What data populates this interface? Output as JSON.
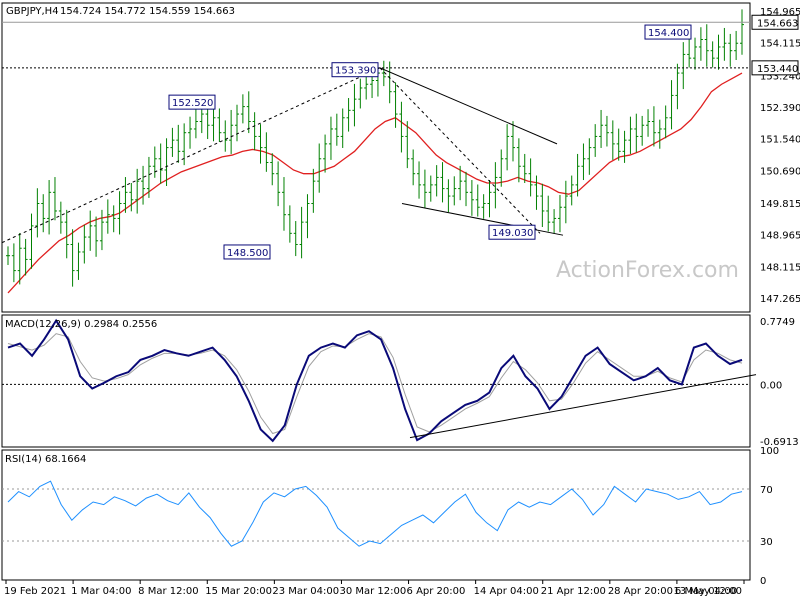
{
  "window": {
    "title": "GBPJPY,H4",
    "ohlc": "154.724 154.772 154.559 154.663"
  },
  "watermark": "ActionForex.com",
  "colors": {
    "bar": "#008000",
    "ma": "#e02020",
    "trendline": "#000000",
    "macd_main": "#0a0a78",
    "macd_signal": "#a0a0a0",
    "rsi": "#1e90ff",
    "label_box": "#0a0a78",
    "price_box": "#ffffff"
  },
  "chart_data": [
    {
      "type": "ohlc",
      "title": "GBPJPY,H4",
      "price_axis": {
        "ticks": [
          "154.965",
          "154.115",
          "153.240",
          "152.390",
          "151.540",
          "150.690",
          "149.815",
          "148.965",
          "148.115",
          "147.265"
        ],
        "ylim": [
          147.265,
          154.965
        ]
      },
      "current_price": "154.663",
      "level_line": "153.440",
      "annotations": [
        {
          "text": "152.520",
          "value": 152.52
        },
        {
          "text": "148.500",
          "value": 148.5
        },
        {
          "text": "153.390",
          "value": 153.39
        },
        {
          "text": "149.030",
          "value": 149.03
        },
        {
          "text": "154.400",
          "value": 154.4
        }
      ],
      "series": [
        {
          "values": [
            148.4,
            148.0,
            148.6,
            148.3,
            149.2,
            149.8,
            149.4,
            150.1,
            149.6,
            149.3,
            148.7,
            148.0,
            148.5,
            148.9,
            149.2,
            148.8,
            149.3,
            149.5,
            149.4,
            149.8,
            150.1,
            149.9,
            150.4,
            150.2,
            150.8,
            151.0,
            150.7,
            151.3,
            151.5,
            151.2,
            151.7,
            151.8,
            152.0,
            152.2,
            151.9,
            152.1,
            151.7,
            151.5,
            151.9,
            152.2,
            152.4,
            152.0,
            151.6,
            151.3,
            150.9,
            150.6,
            150.1,
            149.5,
            149.0,
            148.7,
            149.3,
            149.8,
            150.4,
            151.0,
            151.4,
            151.8,
            151.6,
            152.1,
            152.3,
            152.6,
            152.9,
            153.0,
            153.1,
            153.3,
            153.2,
            152.8,
            152.2,
            151.6,
            151.0,
            150.6,
            150.3,
            150.1,
            150.3,
            150.5,
            150.2,
            150.0,
            150.2,
            150.4,
            150.1,
            149.9,
            149.7,
            149.8,
            150.1,
            150.5,
            151.0,
            151.6,
            151.3,
            150.8,
            150.6,
            150.3,
            150.0,
            149.6,
            149.3,
            149.4,
            149.7,
            150.0,
            150.3,
            150.8,
            151.0,
            151.3,
            151.6,
            151.9,
            151.7,
            151.4,
            151.2,
            151.5,
            151.8,
            151.6,
            151.9,
            152.0,
            151.7,
            151.8,
            152.1,
            152.7,
            153.3,
            153.8,
            153.7,
            154.0,
            154.2,
            153.9,
            153.7,
            154.0,
            154.1,
            153.9,
            154.1,
            154.6
          ]
        },
        {
          "name": "MA",
          "values": [
            147.4,
            147.7,
            148.0,
            148.3,
            148.55,
            148.8,
            148.95,
            149.15,
            149.3,
            149.4,
            149.45,
            149.55,
            149.75,
            149.95,
            150.15,
            150.35,
            150.5,
            150.65,
            150.75,
            150.85,
            150.95,
            151.05,
            151.1,
            151.2,
            151.25,
            151.2,
            151.1,
            150.9,
            150.7,
            150.6,
            150.6,
            150.7,
            150.8,
            151.0,
            151.2,
            151.5,
            151.8,
            152.0,
            152.1,
            151.9,
            151.7,
            151.4,
            151.1,
            150.9,
            150.75,
            150.6,
            150.45,
            150.35,
            150.35,
            150.4,
            150.5,
            150.4,
            150.35,
            150.25,
            150.1,
            150.05,
            150.15,
            150.4,
            150.65,
            150.9,
            151.05,
            151.1,
            151.2,
            151.35,
            151.5,
            151.65,
            151.8,
            152.05,
            152.4,
            152.8,
            153.0,
            153.15,
            153.3
          ]
        }
      ]
    },
    {
      "type": "line",
      "title": "MACD(12,26,9) 0.2984 0.2556",
      "y_ticks": [
        "0.7749",
        "0.00",
        "-0.6913"
      ],
      "ylim": [
        -0.6913,
        0.7749
      ],
      "series": [
        {
          "name": "MACD",
          "values": [
            0.45,
            0.5,
            0.35,
            0.55,
            0.78,
            0.55,
            0.1,
            -0.05,
            0.02,
            0.1,
            0.15,
            0.3,
            0.35,
            0.42,
            0.38,
            0.35,
            0.4,
            0.45,
            0.3,
            0.1,
            -0.2,
            -0.55,
            -0.69,
            -0.5,
            0.0,
            0.35,
            0.45,
            0.5,
            0.45,
            0.6,
            0.65,
            0.55,
            0.2,
            -0.3,
            -0.68,
            -0.6,
            -0.45,
            -0.35,
            -0.25,
            -0.2,
            -0.1,
            0.2,
            0.35,
            0.1,
            -0.05,
            -0.3,
            -0.15,
            0.1,
            0.35,
            0.45,
            0.25,
            0.15,
            0.05,
            0.1,
            0.2,
            0.05,
            0.0,
            0.45,
            0.5,
            0.35,
            0.25,
            0.3
          ]
        },
        {
          "name": "Signal",
          "values": [
            0.5,
            0.46,
            0.42,
            0.48,
            0.62,
            0.58,
            0.28,
            0.08,
            0.04,
            0.07,
            0.12,
            0.24,
            0.32,
            0.38,
            0.38,
            0.36,
            0.38,
            0.42,
            0.35,
            0.18,
            -0.08,
            -0.4,
            -0.6,
            -0.55,
            -0.15,
            0.22,
            0.4,
            0.47,
            0.46,
            0.55,
            0.62,
            0.58,
            0.33,
            -0.12,
            -0.52,
            -0.58,
            -0.5,
            -0.4,
            -0.3,
            -0.23,
            -0.15,
            0.08,
            0.28,
            0.18,
            0.02,
            -0.2,
            -0.18,
            0.02,
            0.26,
            0.4,
            0.3,
            0.2,
            0.1,
            0.1,
            0.16,
            0.08,
            0.03,
            0.3,
            0.42,
            0.38,
            0.3,
            0.26
          ]
        }
      ]
    },
    {
      "type": "line",
      "title": "RSI(14) 68.1664",
      "y_ticks": [
        "100",
        "70",
        "30",
        "0"
      ],
      "ylim": [
        0,
        100
      ],
      "series": [
        {
          "name": "RSI",
          "values": [
            60,
            68,
            64,
            72,
            76,
            58,
            46,
            54,
            60,
            58,
            64,
            61,
            57,
            63,
            66,
            61,
            58,
            67,
            56,
            48,
            36,
            26,
            30,
            44,
            60,
            67,
            64,
            70,
            72,
            65,
            56,
            40,
            33,
            26,
            30,
            28,
            35,
            42,
            46,
            50,
            44,
            52,
            60,
            66,
            52,
            44,
            38,
            54,
            60,
            56,
            60,
            58,
            64,
            70,
            62,
            50,
            58,
            72,
            66,
            60,
            70,
            68,
            66,
            62,
            64,
            68,
            58,
            60,
            66,
            68
          ]
        }
      ]
    }
  ],
  "x_axis": {
    "labels": [
      "19 Feb 2021",
      "1 Mar 04:00",
      "8 Mar 12:00",
      "15 Mar 20:00",
      "23 Mar 04:00",
      "30 Mar 12:00",
      "6 Apr 20:00",
      "14 Apr 04:00",
      "21 Apr 12:00",
      "28 Apr 20:00",
      "6 May 04:00",
      "13 May 12:00"
    ]
  }
}
